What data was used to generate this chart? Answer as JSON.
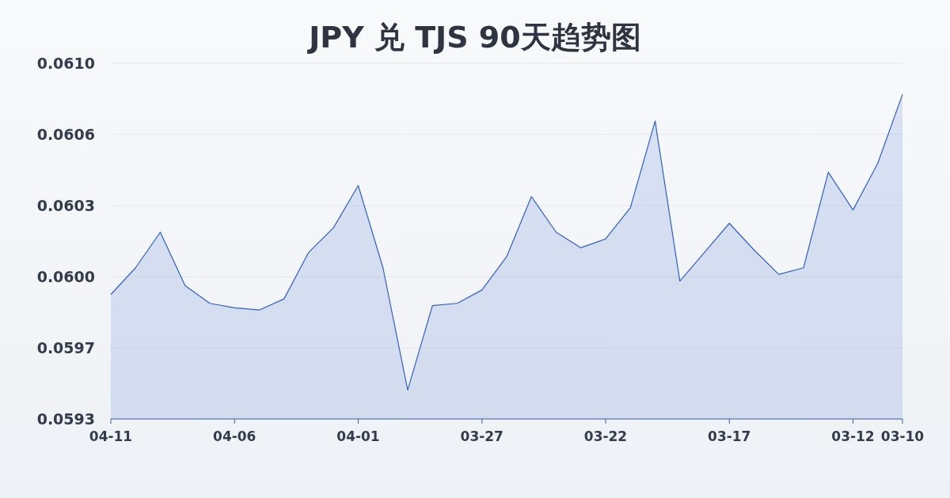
{
  "chart_data": {
    "type": "area",
    "title": "JPY 兑 TJS 90天趋势图",
    "categories": [
      "04-11",
      null,
      null,
      null,
      null,
      "04-06",
      null,
      null,
      null,
      null,
      "04-01",
      null,
      null,
      null,
      null,
      "03-27",
      null,
      null,
      null,
      null,
      "03-22",
      null,
      null,
      null,
      null,
      "03-17",
      null,
      null,
      null,
      null,
      "03-12",
      null,
      "03-10"
    ],
    "series": [
      {
        "color": "#2f5fc8",
        "values": [
          0.05991,
          0.06003,
          0.06019,
          0.05995,
          0.05987,
          0.05985,
          0.05984,
          0.05989,
          0.0601,
          0.06021,
          0.0604,
          0.06003,
          0.05948,
          0.05986,
          0.05987,
          0.05993,
          0.06008,
          0.06035,
          0.06019,
          0.06012,
          0.06016,
          0.0603,
          0.06069,
          0.05997,
          0.0601,
          0.06023,
          0.06011,
          0.06,
          0.06003,
          0.06046,
          0.06029,
          0.0605,
          0.06081
        ]
      }
    ],
    "ylim": [
      0.05935,
      0.06095
    ],
    "yticks": [
      {
        "value": 0.05935,
        "label": "0.0593"
      },
      {
        "value": 0.05967,
        "label": "0.0597"
      },
      {
        "value": 0.05999,
        "label": "0.0600"
      },
      {
        "value": 0.06031,
        "label": "0.0603"
      },
      {
        "value": 0.06063,
        "label": "0.0606"
      },
      {
        "value": 0.06095,
        "label": "0.0610"
      }
    ],
    "grid": "y"
  }
}
